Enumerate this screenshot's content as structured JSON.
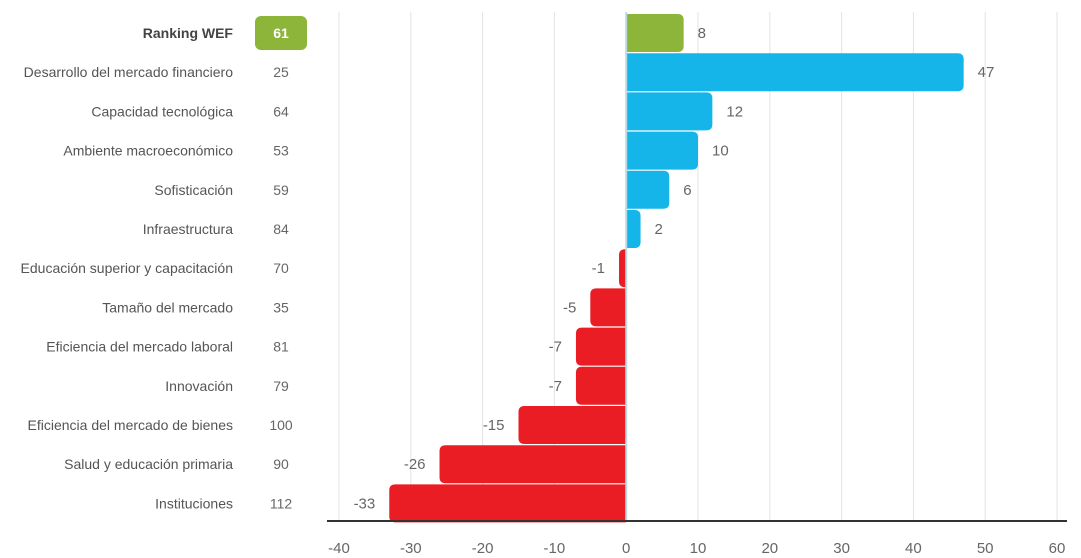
{
  "colors": {
    "highlight": "#8cb53a",
    "positive": "#15b5ea",
    "negative": "#ea1d25",
    "gridline": "#e3e3e3",
    "axis": "#333333",
    "zero_line": "#b8dbe6"
  },
  "chart_data": {
    "type": "bar",
    "orientation": "horizontal",
    "title": "",
    "xlabel": "",
    "ylabel": "",
    "xlim": [
      -40,
      60
    ],
    "xticks": [
      -40,
      -30,
      -20,
      -10,
      0,
      10,
      20,
      30,
      40,
      50,
      60
    ],
    "grid": true,
    "categories": [
      "Ranking WEF",
      "Desarrollo del mercado financiero",
      "Capacidad tecnológica",
      "Ambiente macroeconómico",
      "Sofisticación",
      "Infraestructura",
      "Educación superior y capacitación",
      "Tamaño del mercado",
      "Eficiencia del mercado laboral",
      "Innovación",
      "Eficiencia del mercado de bienes",
      "Salud y educación primaria",
      "Instituciones"
    ],
    "rankings": [
      "61",
      "25",
      "64",
      "53",
      "59",
      "84",
      "70",
      "35",
      "81",
      "79",
      "100",
      "90",
      "112"
    ],
    "values": [
      8,
      47,
      12,
      10,
      6,
      2,
      -1,
      -5,
      -7,
      -7,
      -15,
      -26,
      -33
    ],
    "value_labels": [
      "8",
      "47",
      "12",
      "10",
      "6",
      "2",
      "-1",
      "-5",
      "-7",
      "-7",
      "-15",
      "-26",
      "-33"
    ],
    "highlight_index": 0
  }
}
